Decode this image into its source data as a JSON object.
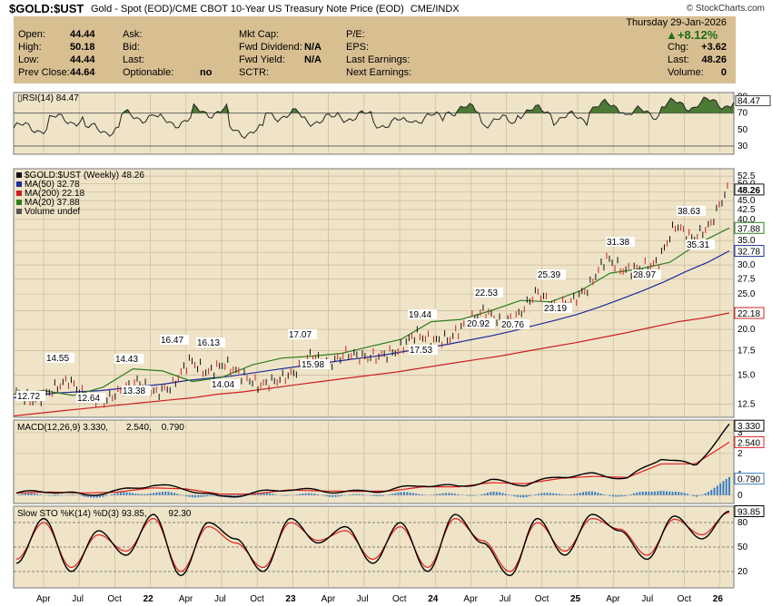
{
  "title": {
    "symbol": "$GOLD:$UST",
    "description": "Gold - Spot (EOD)/CME CBOT 10-Year US Treasury Note Price (EOD)",
    "exchange": "CME/INDX",
    "copyright": "© StockCharts.com"
  },
  "info": {
    "date": "Thursday  29-Jan-2026",
    "pct_change": "▲+8.12%",
    "open_label": "Open:",
    "open": "44.44",
    "high_label": "High:",
    "high": "50.18",
    "low_label": "Low:",
    "low": "44.44",
    "prev_close_label": "Prev Close:",
    "prev_close": "44.64",
    "ask_label": "Ask:",
    "bid_label": "Bid:",
    "last_label": "Last:",
    "optionable_label": "Optionable:",
    "optionable": "no",
    "mkt_cap_label": "Mkt Cap:",
    "fwd_div_label": "Fwd Dividend:",
    "fwd_div": "N/A",
    "fwd_yield_label": "Fwd Yield:",
    "fwd_yield": "N/A",
    "sctr_label": "SCTR:",
    "pe_label": "P/E:",
    "eps_label": "EPS:",
    "last_earnings_label": "Last Earnings:",
    "next_earnings_label": "Next Earnings:",
    "chg_label": "Chg:",
    "chg": "+3.62",
    "last2_label": "Last:",
    "last2": "48.26",
    "volume_label": "Volume:",
    "volume": "0"
  },
  "colors": {
    "panel_bg": "#efe4c8",
    "info_bg": "#d8bf92",
    "grid": "#c9b99b",
    "price": "#111111",
    "ma50": "#1f2b9c",
    "ma200": "#cc2020",
    "ma20": "#2e7d1e",
    "macd_line": "#000000",
    "macd_signal": "#e02020",
    "macd_hist": "#3a7fc2",
    "sto_k": "#000000",
    "sto_d": "#e02020",
    "rsi_line": "#222222",
    "rsi_fill": "#4c7a34"
  },
  "chart_data": [
    {
      "type": "line",
      "title": "RSI(14) 84.47",
      "legend": "RSI(14) 84.47",
      "yticks": [
        30,
        50,
        70,
        90
      ],
      "ylim": [
        20,
        95
      ],
      "levels": [
        30,
        70
      ],
      "last_value": "84.47",
      "x_dates": [
        "2021-03",
        "2021-06",
        "2021-09",
        "2021-12",
        "2022-03",
        "2022-06",
        "2022-09",
        "2022-12",
        "2023-03",
        "2023-06",
        "2023-09",
        "2023-12",
        "2024-03",
        "2024-06",
        "2024-09",
        "2024-12",
        "2025-03",
        "2025-06",
        "2025-09",
        "2025-12",
        "2026-01"
      ],
      "values": [
        52,
        62,
        50,
        66,
        60,
        72,
        48,
        68,
        62,
        66,
        58,
        64,
        74,
        60,
        72,
        64,
        78,
        70,
        80,
        82,
        84
      ]
    },
    {
      "type": "line",
      "title": "$GOLD:$UST (Weekly) 48.26",
      "legend": [
        "$GOLD:$UST (Weekly) 48.26",
        "MA(50) 32.78",
        "MA(200) 22.18",
        "MA(20) 37.88",
        "Volume undef"
      ],
      "log_scale": true,
      "ylim": [
        11.5,
        55
      ],
      "yticks": [
        "12.5",
        "15.0",
        "17.5",
        "20.0",
        "22.5",
        "25.0",
        "27.5",
        "30.0",
        "32.5",
        "35.0",
        "37.5",
        "40.0",
        "42.5",
        "45.0",
        "47.5",
        "50.0",
        "52.5"
      ],
      "xtick_labels": [
        "Apr",
        "Jul",
        "Oct",
        "22",
        "Apr",
        "Jul",
        "Oct",
        "23",
        "Apr",
        "Jul",
        "Oct",
        "24",
        "Apr",
        "Jul",
        "Oct",
        "25",
        "Apr",
        "Jul",
        "Oct",
        "26"
      ],
      "price_points": [
        [
          "2021-01",
          13.4
        ],
        [
          "2021-02",
          12.72
        ],
        [
          "2021-04",
          13.6
        ],
        [
          "2021-05",
          14.55
        ],
        [
          "2021-07",
          13.1
        ],
        [
          "2021-08",
          12.64
        ],
        [
          "2021-10",
          13.6
        ],
        [
          "2021-11",
          14.43
        ],
        [
          "2021-12",
          13.38
        ],
        [
          "2022-01",
          14.0
        ],
        [
          "2022-03",
          16.47
        ],
        [
          "2022-04",
          15.2
        ],
        [
          "2022-05",
          16.13
        ],
        [
          "2022-06",
          15.0
        ],
        [
          "2022-07",
          14.04
        ],
        [
          "2022-09",
          14.5
        ],
        [
          "2022-11",
          15.2
        ],
        [
          "2023-01",
          17.07
        ],
        [
          "2023-02",
          15.98
        ],
        [
          "2023-04",
          17.2
        ],
        [
          "2023-06",
          16.8
        ],
        [
          "2023-08",
          16.9
        ],
        [
          "2023-10",
          17.53
        ],
        [
          "2023-11",
          19.44
        ],
        [
          "2023-12",
          18.6
        ],
        [
          "2024-02",
          18.9
        ],
        [
          "2024-03",
          20.92
        ],
        [
          "2024-04",
          22.53
        ],
        [
          "2024-06",
          20.76
        ],
        [
          "2024-08",
          22.0
        ],
        [
          "2024-10",
          25.39
        ],
        [
          "2024-11",
          23.19
        ],
        [
          "2024-12",
          23.8
        ],
        [
          "2025-02",
          26.0
        ],
        [
          "2025-04",
          31.38
        ],
        [
          "2025-06",
          28.97
        ],
        [
          "2025-07",
          29.4
        ],
        [
          "2025-08",
          30.4
        ],
        [
          "2025-10",
          38.63
        ],
        [
          "2025-10b",
          35.31
        ],
        [
          "2025-12",
          38.5
        ],
        [
          "2026-01",
          48.26
        ]
      ],
      "ma50_points": [
        13.0,
        13.2,
        13.4,
        13.5,
        13.6,
        13.8,
        14.0,
        14.2,
        14.5,
        14.7,
        14.9,
        15.2,
        15.5,
        15.8,
        16.1,
        16.4,
        16.7,
        17.0,
        17.4,
        17.8,
        18.2,
        18.7,
        19.2,
        19.8,
        20.5,
        21.2,
        22.0,
        23.0,
        24.2,
        25.5,
        27.0,
        28.8,
        30.5,
        32.78
      ],
      "ma200_points": [
        11.6,
        11.8,
        12.0,
        12.2,
        12.4,
        12.6,
        12.8,
        13.0,
        13.3,
        13.5,
        13.8,
        14.1,
        14.4,
        14.7,
        15.0,
        15.3,
        15.7,
        16.1,
        16.5,
        16.9,
        17.4,
        17.9,
        18.4,
        19.0,
        19.6,
        20.3,
        21.0,
        21.5,
        22.18
      ],
      "ma20_points": [
        13.3,
        13.6,
        13.2,
        13.9,
        15.6,
        15.4,
        14.4,
        14.8,
        16.0,
        16.7,
        16.9,
        17.2,
        18.0,
        18.8,
        21.0,
        21.3,
        22.5,
        24.0,
        23.8,
        25.5,
        28.5,
        29.3,
        30.5,
        34.5,
        37.88
      ],
      "annotations": [
        "12.72",
        "14.55",
        "12.64",
        "14.43",
        "13.38",
        "16.47",
        "16.13",
        "14.04",
        "17.07",
        "15.98",
        "19.44",
        "17.53",
        "22.53",
        "20.92",
        "20.76",
        "25.39",
        "23.19",
        "31.38",
        "28.97",
        "38.63",
        "35.31"
      ],
      "last_labels": [
        "48.26",
        "37.88",
        "32.78",
        "22.18"
      ]
    },
    {
      "type": "line",
      "title": "MACD(12,26,9) 3.330, 2.540, 0.790",
      "legend": [
        "MACD(12,26,9) 3.330,",
        "2.540,",
        "0.790"
      ],
      "yticks": [
        "0",
        "1",
        "2",
        "3"
      ],
      "ylim": [
        -0.4,
        3.6
      ],
      "last_labels": [
        "3.330",
        "2.540",
        "0.790"
      ],
      "macd": [
        0.1,
        0.2,
        0.0,
        0.2,
        0.5,
        0.3,
        -0.1,
        0.1,
        0.3,
        0.2,
        0.15,
        0.25,
        0.5,
        0.4,
        0.7,
        0.5,
        0.9,
        1.0,
        0.8,
        1.8,
        1.4,
        3.33
      ],
      "signal": [
        0.1,
        0.15,
        0.1,
        0.15,
        0.35,
        0.3,
        0.05,
        0.05,
        0.25,
        0.2,
        0.18,
        0.2,
        0.4,
        0.4,
        0.6,
        0.55,
        0.8,
        0.9,
        0.85,
        1.5,
        1.5,
        2.54
      ]
    },
    {
      "type": "line",
      "title": "Slow STO %K(14) %D(3) 93.85, 92.30",
      "legend": [
        "Slow STO %K(14) %D(3) 93.85,",
        "92.30"
      ],
      "yticks": [
        "20",
        "50",
        "80"
      ],
      "ylim": [
        0,
        100
      ],
      "levels": [
        20,
        50,
        80
      ],
      "last_labels": [
        "93.85"
      ],
      "k": [
        30,
        85,
        20,
        70,
        40,
        90,
        15,
        80,
        60,
        20,
        85,
        55,
        75,
        30,
        80,
        20,
        90,
        55,
        15,
        85,
        40,
        90,
        70,
        35,
        88,
        60,
        93.85
      ],
      "d": [
        35,
        80,
        25,
        65,
        45,
        85,
        20,
        75,
        55,
        25,
        80,
        58,
        70,
        35,
        75,
        25,
        85,
        58,
        20,
        80,
        45,
        85,
        72,
        40,
        84,
        65,
        92.3
      ]
    }
  ]
}
